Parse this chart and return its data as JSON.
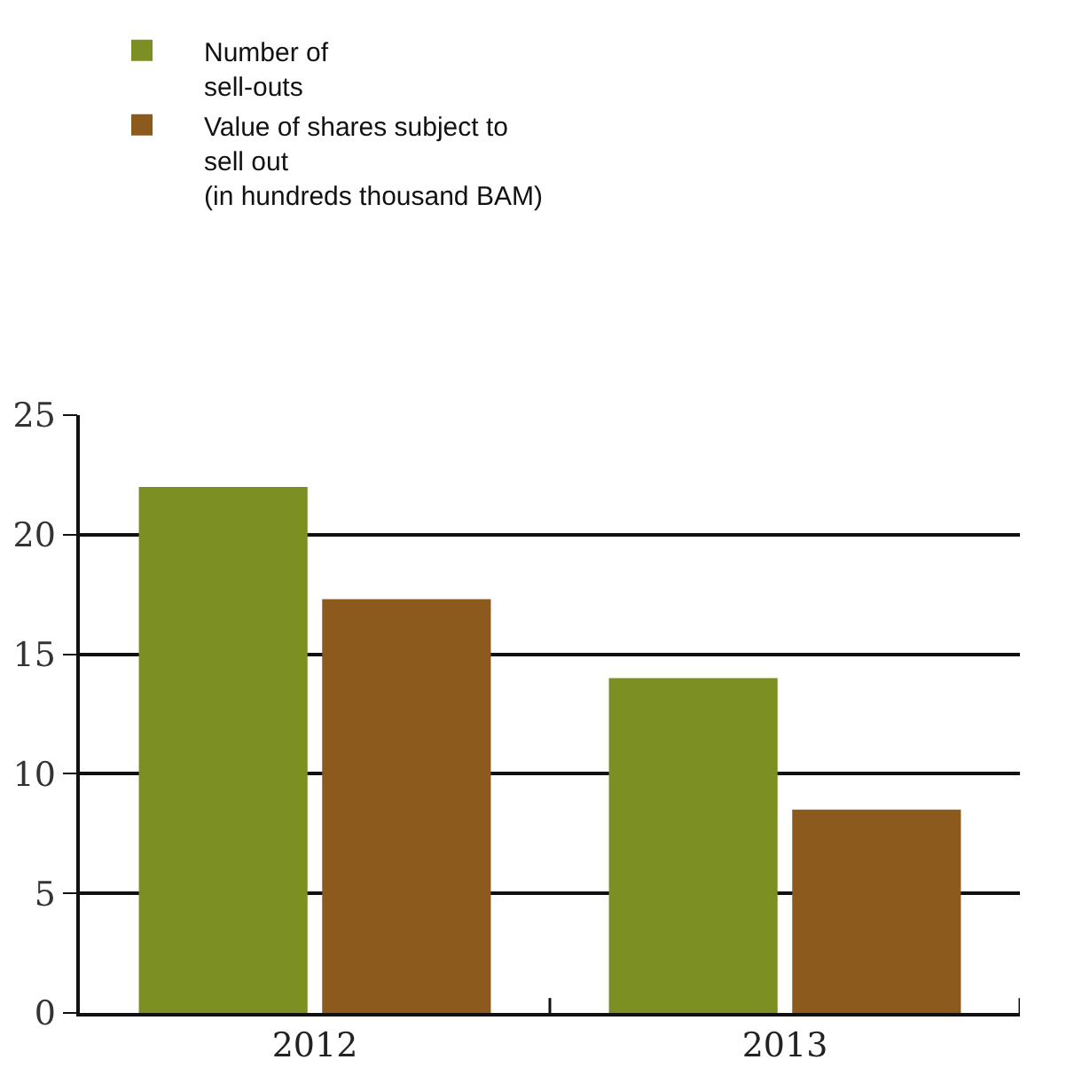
{
  "chart_data": {
    "type": "bar",
    "categories": [
      "2012",
      "2013"
    ],
    "series": [
      {
        "name": "Number of\nsell-outs",
        "color": "#7b8f23",
        "values": [
          22,
          14
        ]
      },
      {
        "name": "Value of shares subject to\nsell out\n(in hundreds thousand BAM)",
        "color": "#8b5a1c",
        "values": [
          17.3,
          8.5
        ]
      }
    ],
    "ylim": [
      0,
      25
    ],
    "yticks": [
      0,
      5,
      10,
      15,
      20,
      25
    ],
    "grid": "y",
    "legend": "top"
  }
}
